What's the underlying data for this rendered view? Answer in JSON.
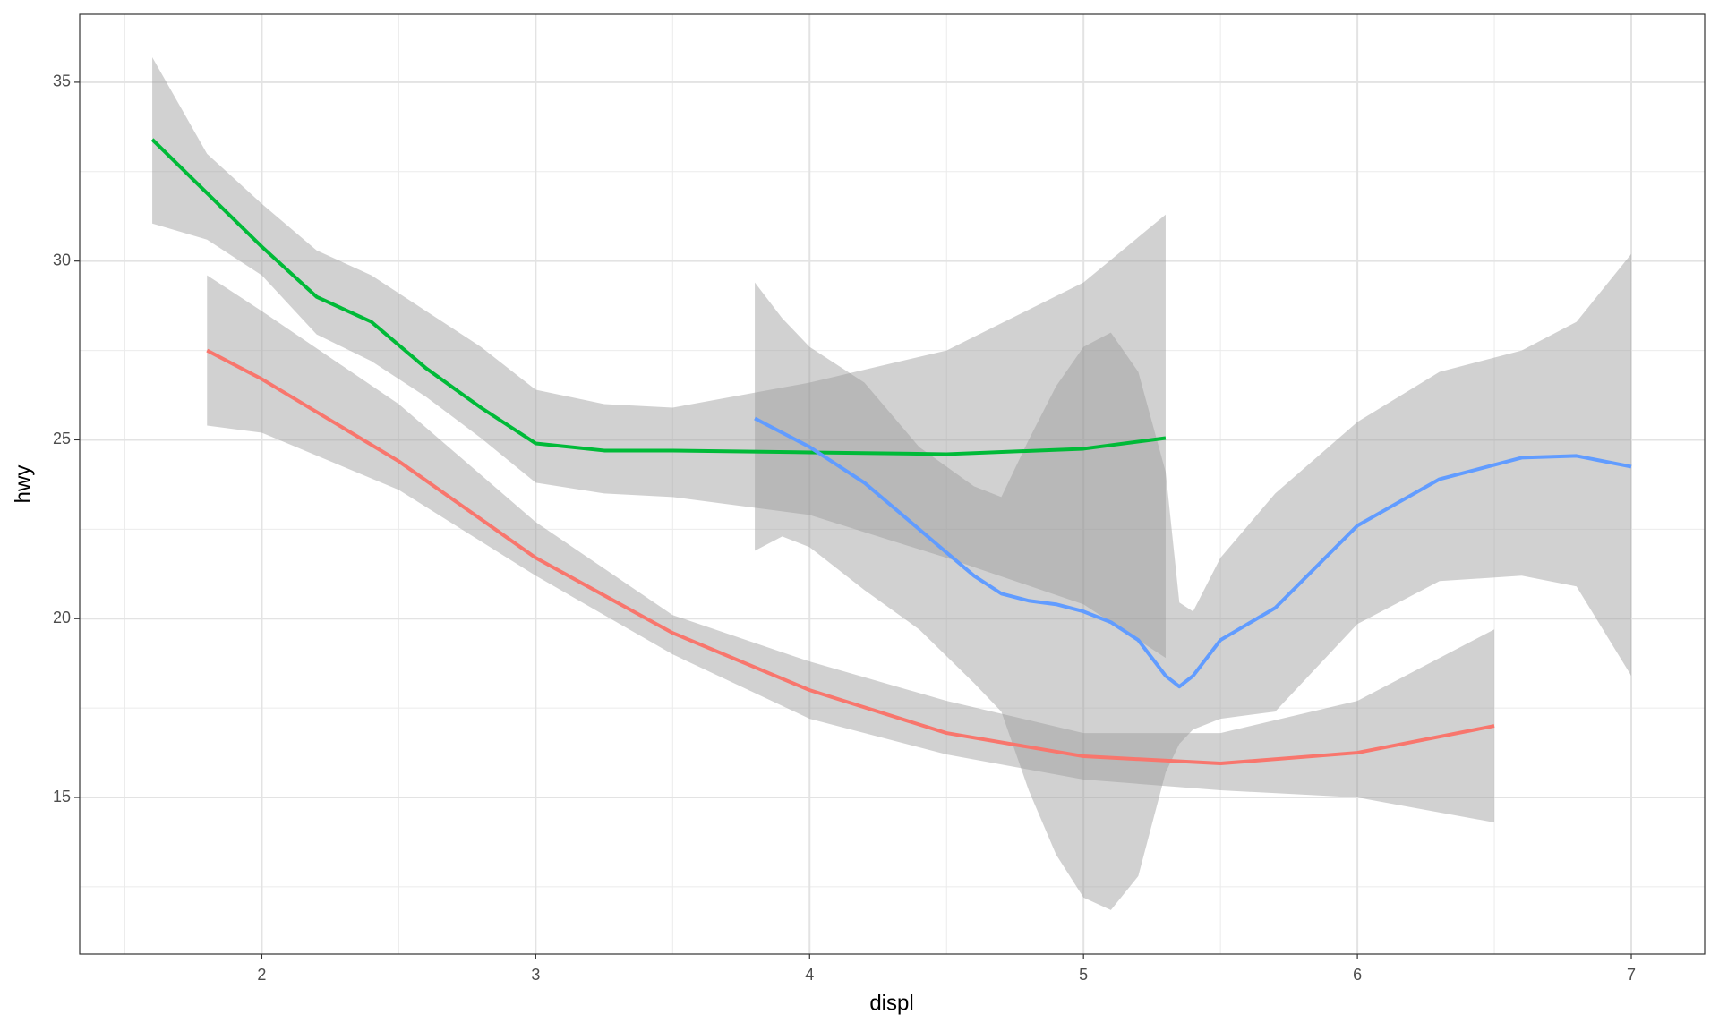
{
  "chart_data": {
    "type": "line",
    "xlabel": "displ",
    "ylabel": "hwy",
    "xlim": [
      1.335,
      7.268
    ],
    "ylim": [
      10.62,
      36.9
    ],
    "xticks": [
      2,
      3,
      4,
      5,
      6,
      7
    ],
    "yticks": [
      15,
      20,
      25,
      30,
      35
    ],
    "xminor": [
      1.5,
      2.5,
      3.5,
      4.5,
      5.5,
      6.5
    ],
    "yminor": [
      12.5,
      17.5,
      22.5,
      27.5,
      32.5
    ],
    "grid": true,
    "band_color": "#999999",
    "series": [
      {
        "color": "#F8766D",
        "x": [
          1.8,
          2.0,
          2.5,
          3.0,
          3.5,
          4.0,
          4.5,
          5.0,
          5.5,
          6.0,
          6.5
        ],
        "values": [
          27.5,
          26.7,
          24.4,
          21.7,
          19.6,
          18.0,
          16.8,
          16.15,
          15.95,
          16.25,
          17.0
        ],
        "upper": [
          29.6,
          28.6,
          26.0,
          22.7,
          20.1,
          18.8,
          17.7,
          16.8,
          16.8,
          17.7,
          19.7
        ],
        "lower": [
          25.4,
          25.2,
          23.6,
          21.2,
          19.0,
          17.2,
          16.2,
          15.5,
          15.2,
          15.0,
          14.3
        ]
      },
      {
        "color": "#00BA38",
        "x": [
          1.6,
          1.8,
          2.0,
          2.2,
          2.4,
          2.6,
          2.8,
          3.0,
          3.25,
          3.5,
          4.0,
          4.5,
          5.0,
          5.3
        ],
        "values": [
          33.4,
          31.9,
          30.4,
          29.0,
          28.3,
          27.0,
          25.9,
          24.9,
          24.7,
          24.7,
          24.65,
          24.6,
          24.75,
          25.05
        ],
        "upper": [
          35.7,
          33.0,
          31.6,
          30.3,
          29.6,
          28.6,
          27.6,
          26.4,
          26.0,
          25.9,
          26.6,
          27.5,
          29.4,
          31.3
        ],
        "lower": [
          31.05,
          30.6,
          29.6,
          27.95,
          27.2,
          26.2,
          25.05,
          23.8,
          23.5,
          23.4,
          22.9,
          21.7,
          20.4,
          18.9
        ]
      },
      {
        "color": "#619CFF",
        "x": [
          3.8,
          3.9,
          4.0,
          4.2,
          4.4,
          4.6,
          4.7,
          4.8,
          4.9,
          5.0,
          5.1,
          5.2,
          5.3,
          5.35,
          5.4,
          5.5,
          5.7,
          6.0,
          6.3,
          6.6,
          6.8,
          7.0
        ],
        "values": [
          25.6,
          25.2,
          24.8,
          23.8,
          22.5,
          21.2,
          20.7,
          20.5,
          20.4,
          20.2,
          19.9,
          19.4,
          18.4,
          18.1,
          18.4,
          19.4,
          20.3,
          22.6,
          23.9,
          24.5,
          24.55,
          24.25
        ],
        "upper": [
          29.4,
          28.4,
          27.6,
          26.6,
          24.8,
          23.7,
          23.4,
          25.0,
          26.5,
          27.6,
          28.0,
          26.9,
          24.1,
          20.45,
          20.2,
          21.7,
          23.5,
          25.5,
          26.9,
          27.5,
          28.3,
          30.2
        ],
        "lower": [
          21.9,
          22.3,
          22.0,
          20.8,
          19.7,
          18.2,
          17.4,
          15.2,
          13.4,
          12.2,
          11.85,
          12.8,
          15.7,
          16.5,
          16.9,
          17.2,
          17.4,
          19.85,
          21.05,
          21.2,
          20.9,
          18.4
        ]
      }
    ]
  }
}
